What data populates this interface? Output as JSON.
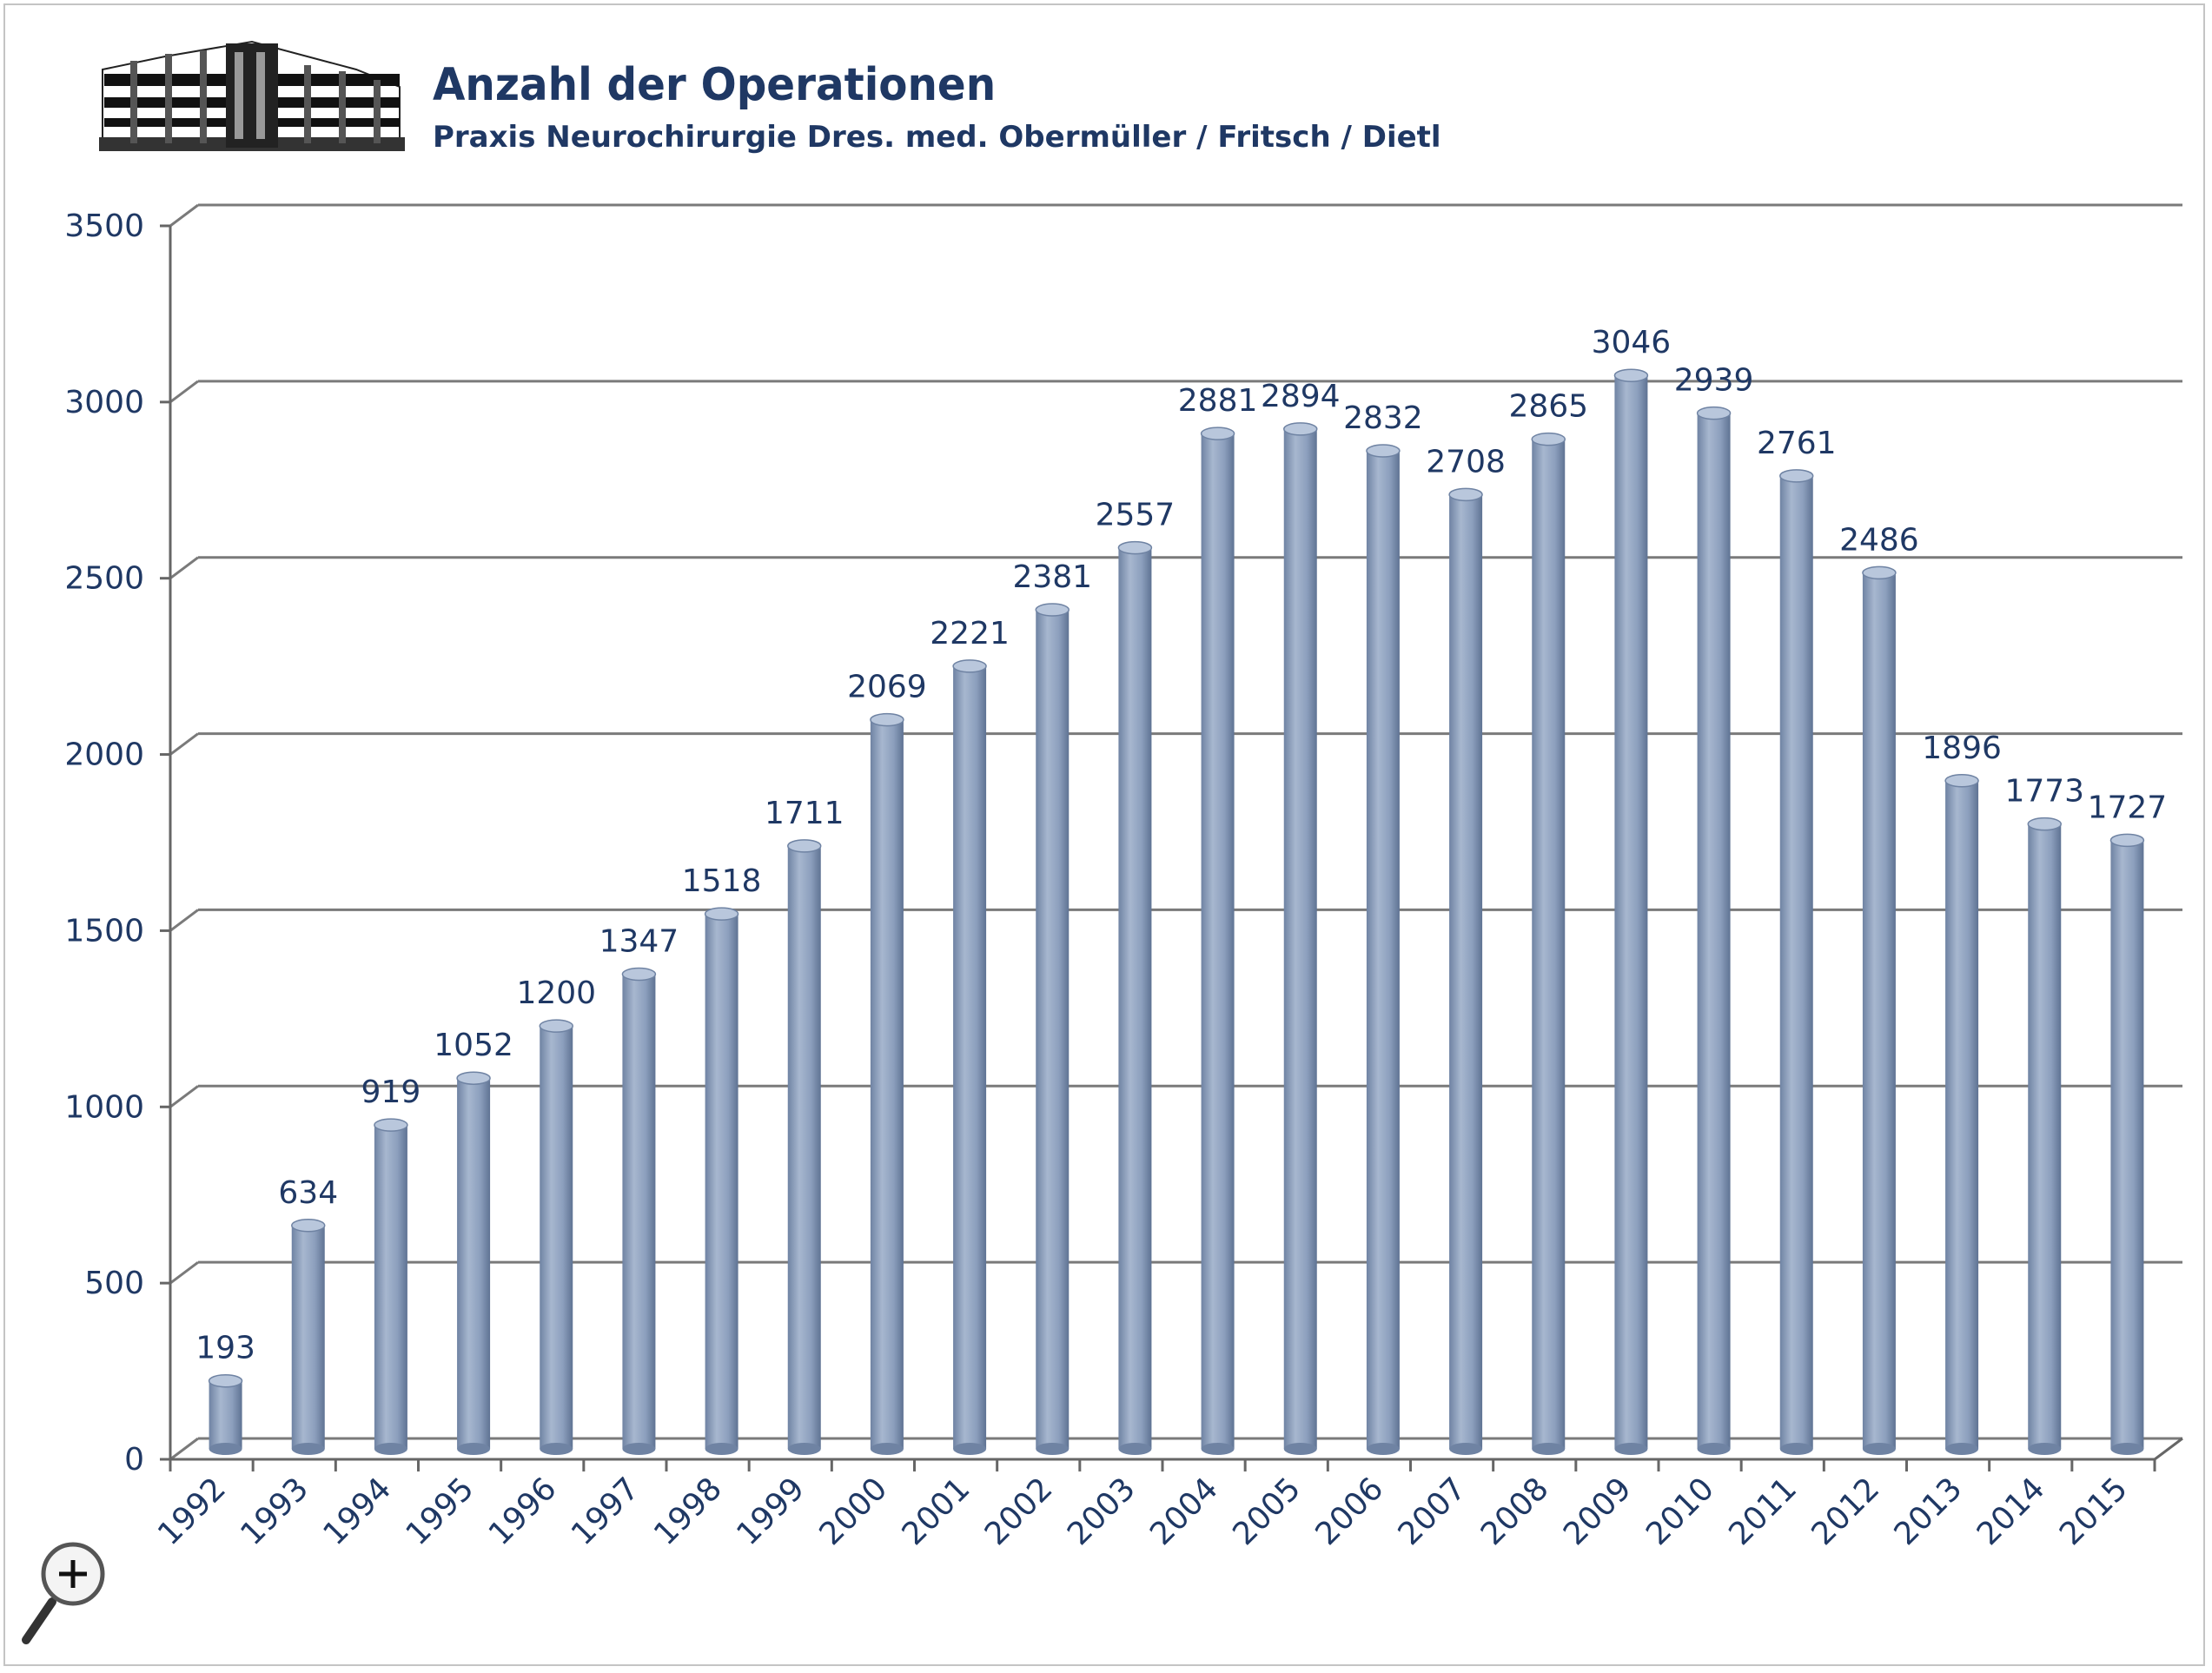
{
  "header": {
    "title": "Anzahl der Operationen",
    "subtitle": "Praxis Neurochirurgie Dres. med. Obermüller / Fritsch / Dietl"
  },
  "colors": {
    "title": "#1f3864",
    "bar": "#8fa2c0",
    "bar_top": "#b9c7dc",
    "grid": "#7a7a7a"
  },
  "icons": {
    "logo": "building-logo-icon",
    "zoom": "zoom-magnifier-icon"
  },
  "chart_data": {
    "type": "bar",
    "title": "Anzahl der Operationen",
    "subtitle": "Praxis Neurochirurgie Dres. med. Obermüller / Fritsch / Dietl",
    "xlabel": "",
    "ylabel": "",
    "ylim": [
      0,
      3500
    ],
    "yticks": [
      0,
      500,
      1000,
      1500,
      2000,
      2500,
      3000,
      3500
    ],
    "grid": true,
    "legend": "none",
    "categories": [
      "1992",
      "1993",
      "1994",
      "1995",
      "1996",
      "1997",
      "1998",
      "1999",
      "2000",
      "2001",
      "2002",
      "2003",
      "2004",
      "2005",
      "2006",
      "2007",
      "2008",
      "2009",
      "2010",
      "2011",
      "2012",
      "2013",
      "2014",
      "2015"
    ],
    "values": [
      193,
      634,
      919,
      1052,
      1200,
      1347,
      1518,
      1711,
      2069,
      2221,
      2381,
      2557,
      2881,
      2894,
      2832,
      2708,
      2865,
      3046,
      2939,
      2761,
      2486,
      1896,
      1773,
      1727
    ]
  }
}
